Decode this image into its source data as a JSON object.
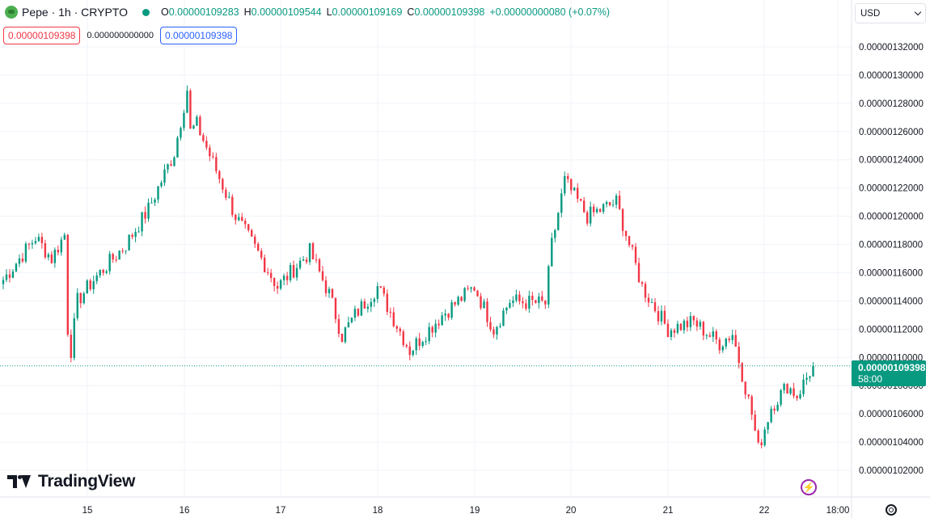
{
  "legend": {
    "symbol_title": "Pepe · 1h · CRYPTO",
    "open_label": "O",
    "open": "0.00000109283",
    "high_label": "H",
    "high": "0.00000109544",
    "low_label": "L",
    "low": "0.00000109169",
    "close_label": "C",
    "close": "0.00000109398",
    "change": "+0.00000000080 (+0.07%)"
  },
  "value_row": {
    "first": "0.00000109398",
    "second": "0.000000000000",
    "third": "0.00000109398"
  },
  "currency": "USD",
  "price_tag": {
    "price": "0.00000109398",
    "countdown": "58:00"
  },
  "brand": "TradingView",
  "colors": {
    "up": "#089981",
    "down": "#f23645",
    "grid": "#f0f3fa",
    "text": "#131722"
  },
  "icons": {
    "bolt": "lightning-icon",
    "settings": "gear-icon"
  },
  "chart_data": {
    "type": "candlestick",
    "ylim": [
      1.01e-06,
      1.335e-06
    ],
    "y_ticks": [
      "0.00000132000",
      "0.00000130000",
      "0.00000128000",
      "0.00000126000",
      "0.00000124000",
      "0.00000122000",
      "0.00000120000",
      "0.00000118000",
      "0.00000116000",
      "0.00000114000",
      "0.00000112000",
      "0.00000110000",
      "0.00000108000",
      "0.00000106000",
      "0.00000104000",
      "0.00000102000"
    ],
    "x_ticks": [
      "15",
      "16",
      "17",
      "18",
      "19",
      "20",
      "21",
      "22",
      "18:00"
    ],
    "last_price": 1.09398e-06,
    "waypoints": [
      [
        0,
        1.155
      ],
      [
        5,
        1.17
      ],
      [
        10,
        1.185
      ],
      [
        15,
        1.17
      ],
      [
        19,
        1.187
      ],
      [
        20,
        1.12
      ],
      [
        21,
        1.105
      ],
      [
        23,
        1.14
      ],
      [
        28,
        1.155
      ],
      [
        38,
        1.18
      ],
      [
        45,
        1.205
      ],
      [
        53,
        1.245
      ],
      [
        57,
        1.29
      ],
      [
        58,
        1.26
      ],
      [
        60,
        1.265
      ],
      [
        72,
        1.2
      ],
      [
        80,
        1.17
      ],
      [
        85,
        1.15
      ],
      [
        95,
        1.175
      ],
      [
        101,
        1.145
      ],
      [
        105,
        1.115
      ],
      [
        109,
        1.13
      ],
      [
        116,
        1.15
      ],
      [
        126,
        1.105
      ],
      [
        136,
        1.13
      ],
      [
        146,
        1.15
      ],
      [
        152,
        1.12
      ],
      [
        157,
        1.14
      ],
      [
        168,
        1.138
      ],
      [
        170,
        1.18
      ],
      [
        174,
        1.225
      ],
      [
        181,
        1.2
      ],
      [
        190,
        1.21
      ],
      [
        198,
        1.15
      ],
      [
        206,
        1.12
      ],
      [
        214,
        1.125
      ],
      [
        222,
        1.11
      ],
      [
        226,
        1.117
      ],
      [
        232,
        1.06
      ],
      [
        234,
        1.035
      ],
      [
        238,
        1.065
      ],
      [
        243,
        1.08
      ],
      [
        246,
        1.073
      ],
      [
        251,
        1.094
      ]
    ]
  }
}
